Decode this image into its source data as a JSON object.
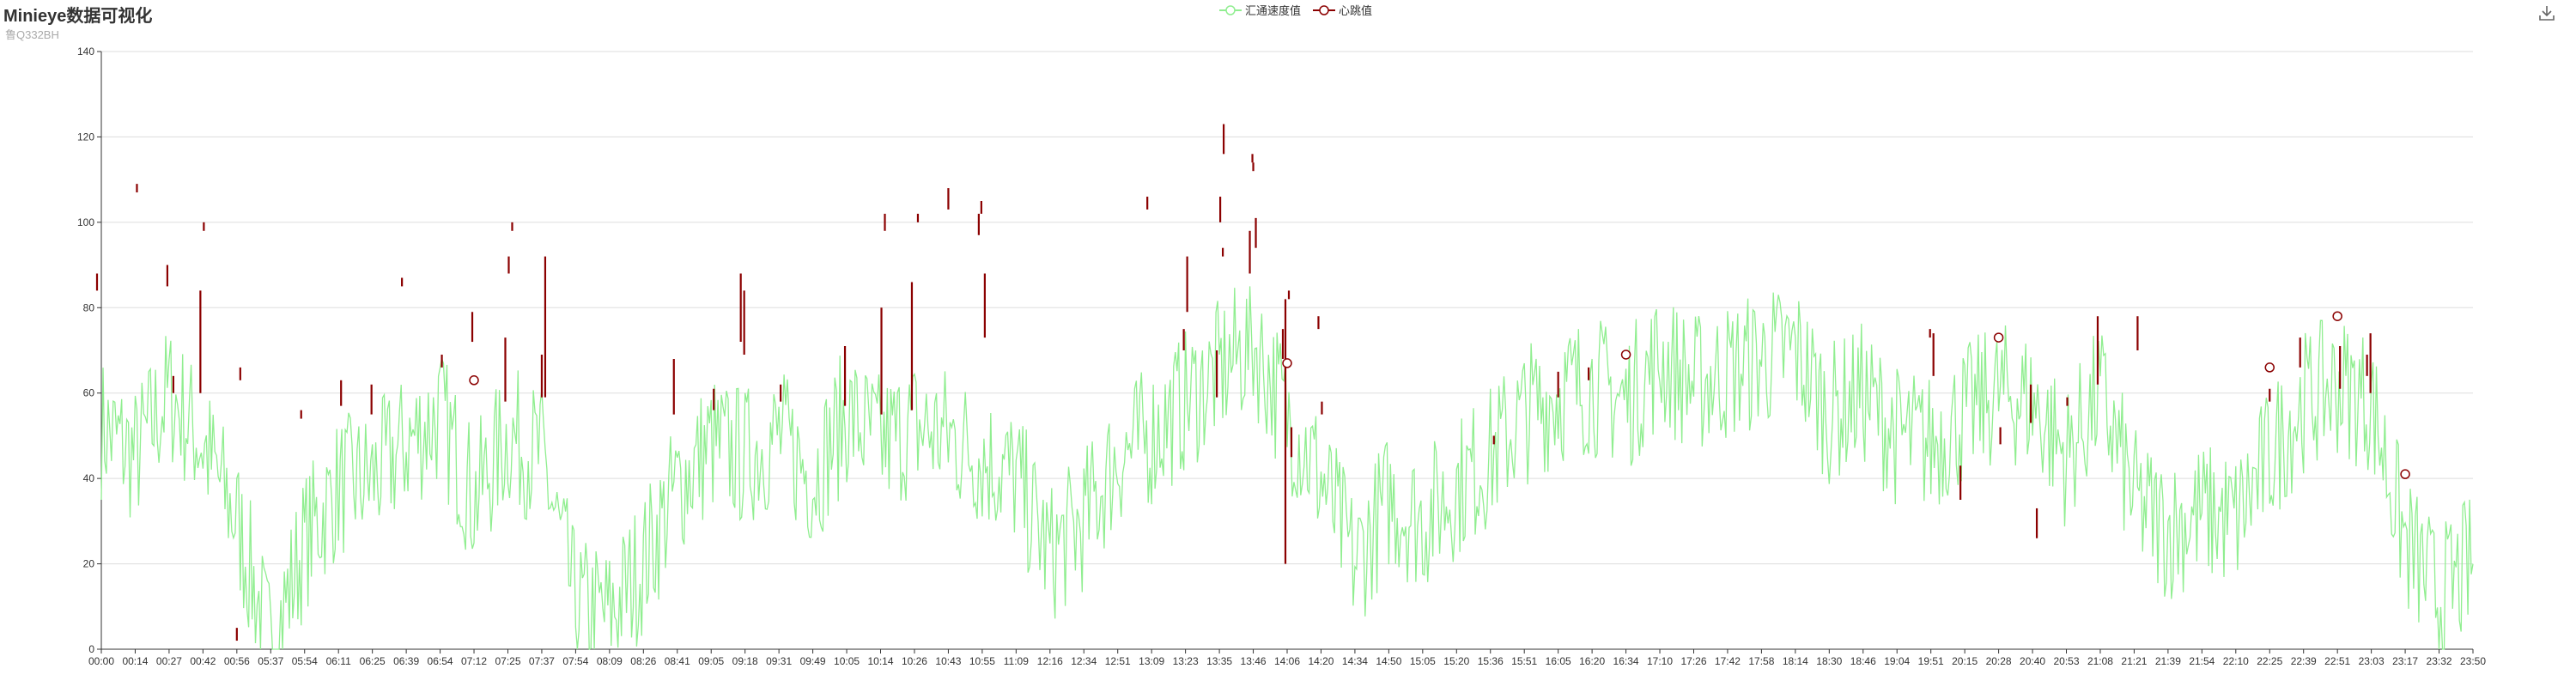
{
  "title": "Minieye数据可视化",
  "subtitle": "鲁Q332BH",
  "toolbox": {
    "download_icon": "download-icon"
  },
  "colors": {
    "speed": "#90ee90",
    "heartbeat": "#8b0000",
    "grid": "#dddddd",
    "axis": "#333333"
  },
  "chart_data": {
    "type": "line",
    "xlabel": "",
    "ylabel": "",
    "ylim": [
      0,
      140
    ],
    "yticks": [
      0,
      20,
      40,
      60,
      80,
      100,
      120,
      140
    ],
    "grid": true,
    "legend_position": "top-center",
    "legend": [
      "汇通速度值",
      "心跳值"
    ],
    "x_tick_labels": [
      "00:00",
      "00:14",
      "00:27",
      "00:42",
      "00:56",
      "05:37",
      "05:54",
      "06:11",
      "06:25",
      "06:39",
      "06:54",
      "07:12",
      "07:25",
      "07:37",
      "07:54",
      "08:09",
      "08:26",
      "08:41",
      "09:05",
      "09:18",
      "09:31",
      "09:49",
      "10:05",
      "10:14",
      "10:26",
      "10:43",
      "10:55",
      "11:09",
      "12:16",
      "12:34",
      "12:51",
      "13:09",
      "13:23",
      "13:35",
      "13:46",
      "14:06",
      "14:20",
      "14:34",
      "14:50",
      "15:05",
      "15:20",
      "15:36",
      "15:51",
      "16:05",
      "16:20",
      "16:34",
      "17:10",
      "17:26",
      "17:42",
      "17:58",
      "18:14",
      "18:30",
      "18:46",
      "19:04",
      "19:51",
      "20:15",
      "20:28",
      "20:40",
      "20:53",
      "21:08",
      "21:21",
      "21:39",
      "21:54",
      "22:10",
      "22:25",
      "22:39",
      "22:51",
      "23:03",
      "23:17",
      "23:32",
      "23:50"
    ],
    "series": [
      {
        "name": "汇通速度值",
        "kind": "line",
        "y_by_x_tick": [
          52,
          45,
          60,
          48,
          30,
          0,
          25,
          38,
          40,
          48,
          55,
          35,
          50,
          45,
          10,
          8,
          20,
          38,
          48,
          45,
          50,
          40,
          55,
          48,
          52,
          50,
          45,
          40,
          22,
          30,
          45,
          50,
          58,
          65,
          72,
          55,
          40,
          20,
          35,
          30,
          38,
          45,
          55,
          60,
          62,
          58,
          68,
          62,
          65,
          68,
          70,
          55,
          60,
          50,
          48,
          55,
          60,
          58,
          45,
          60,
          35,
          28,
          32,
          30,
          45,
          58,
          62,
          58,
          25,
          12,
          20
        ]
      },
      {
        "name": "心跳值",
        "kind": "vertical-segments",
        "segments": [
          {
            "x": "00:00",
            "low": 84,
            "high": 88
          },
          {
            "x": "00:14",
            "low": 107,
            "high": 109
          },
          {
            "x": "00:27",
            "low": 85,
            "high": 90
          },
          {
            "x": "00:27",
            "low": 60,
            "high": 64
          },
          {
            "x": "00:42",
            "low": 98,
            "high": 100
          },
          {
            "x": "00:42",
            "low": 60,
            "high": 84
          },
          {
            "x": "00:56",
            "low": 63,
            "high": 66
          },
          {
            "x": "00:56",
            "low": 2,
            "high": 5
          },
          {
            "x": "05:54",
            "low": 54,
            "high": 56
          },
          {
            "x": "06:11",
            "low": 57,
            "high": 63
          },
          {
            "x": "06:25",
            "low": 55,
            "high": 62
          },
          {
            "x": "06:39",
            "low": 85,
            "high": 87
          },
          {
            "x": "06:54",
            "low": 66,
            "high": 69
          },
          {
            "x": "07:12",
            "low": 72,
            "high": 79
          },
          {
            "x": "07:25",
            "low": 98,
            "high": 100
          },
          {
            "x": "07:25",
            "low": 88,
            "high": 92
          },
          {
            "x": "07:25",
            "low": 58,
            "high": 73
          },
          {
            "x": "07:37",
            "low": 59,
            "high": 92
          },
          {
            "x": "07:37",
            "low": 59,
            "high": 69
          },
          {
            "x": "08:41",
            "low": 55,
            "high": 68
          },
          {
            "x": "09:05",
            "low": 56,
            "high": 61
          },
          {
            "x": "09:18",
            "low": 69,
            "high": 84
          },
          {
            "x": "09:18",
            "low": 72,
            "high": 88
          },
          {
            "x": "09:31",
            "low": 58,
            "high": 62
          },
          {
            "x": "10:05",
            "low": 57,
            "high": 71
          },
          {
            "x": "10:14",
            "low": 98,
            "high": 102
          },
          {
            "x": "10:14",
            "low": 55,
            "high": 80
          },
          {
            "x": "10:26",
            "low": 56,
            "high": 86
          },
          {
            "x": "10:26",
            "low": 100,
            "high": 102
          },
          {
            "x": "10:43",
            "low": 103,
            "high": 108
          },
          {
            "x": "10:55",
            "low": 97,
            "high": 102
          },
          {
            "x": "10:55",
            "low": 73,
            "high": 88
          },
          {
            "x": "10:55",
            "low": 102,
            "high": 105
          },
          {
            "x": "13:09",
            "low": 103,
            "high": 106
          },
          {
            "x": "13:23",
            "low": 79,
            "high": 92
          },
          {
            "x": "13:23",
            "low": 70,
            "high": 75
          },
          {
            "x": "13:35",
            "low": 116,
            "high": 123
          },
          {
            "x": "13:35",
            "low": 100,
            "high": 106
          },
          {
            "x": "13:35",
            "low": 59,
            "high": 70
          },
          {
            "x": "13:35",
            "low": 92,
            "high": 94
          },
          {
            "x": "13:46",
            "low": 112,
            "high": 114
          },
          {
            "x": "13:46",
            "low": 88,
            "high": 98
          },
          {
            "x": "13:46",
            "low": 94,
            "high": 101
          },
          {
            "x": "13:46",
            "low": 114,
            "high": 116
          },
          {
            "x": "14:06",
            "low": 68,
            "high": 75
          },
          {
            "x": "14:06",
            "low": 82,
            "high": 84
          },
          {
            "x": "14:06",
            "low": 20,
            "high": 82
          },
          {
            "x": "14:06",
            "low": 45,
            "high": 52
          },
          {
            "x": "14:20",
            "low": 55,
            "high": 58
          },
          {
            "x": "14:20",
            "low": 75,
            "high": 78
          },
          {
            "x": "15:36",
            "low": 48,
            "high": 50
          },
          {
            "x": "16:05",
            "low": 59,
            "high": 65
          },
          {
            "x": "16:20",
            "low": 63,
            "high": 66
          },
          {
            "x": "19:51",
            "low": 64,
            "high": 74
          },
          {
            "x": "19:51",
            "low": 73,
            "high": 75
          },
          {
            "x": "20:15",
            "low": 35,
            "high": 43
          },
          {
            "x": "20:28",
            "low": 48,
            "high": 52
          },
          {
            "x": "20:40",
            "low": 53,
            "high": 62
          },
          {
            "x": "20:40",
            "low": 26,
            "high": 33
          },
          {
            "x": "20:53",
            "low": 57,
            "high": 59
          },
          {
            "x": "21:08",
            "low": 62,
            "high": 78
          },
          {
            "x": "21:21",
            "low": 70,
            "high": 78
          },
          {
            "x": "22:25",
            "low": 58,
            "high": 61
          },
          {
            "x": "22:39",
            "low": 66,
            "high": 73
          },
          {
            "x": "22:51",
            "low": 61,
            "high": 71
          },
          {
            "x": "23:03",
            "low": 60,
            "high": 74
          },
          {
            "x": "23:03",
            "low": 64,
            "high": 69
          }
        ],
        "points": [
          {
            "x": "07:12",
            "y": 63
          },
          {
            "x": "14:06",
            "y": 67
          },
          {
            "x": "16:34",
            "y": 69
          },
          {
            "x": "20:28",
            "y": 73
          },
          {
            "x": "22:25",
            "y": 66
          },
          {
            "x": "22:51",
            "y": 78
          },
          {
            "x": "23:17",
            "y": 41
          }
        ]
      }
    ]
  }
}
